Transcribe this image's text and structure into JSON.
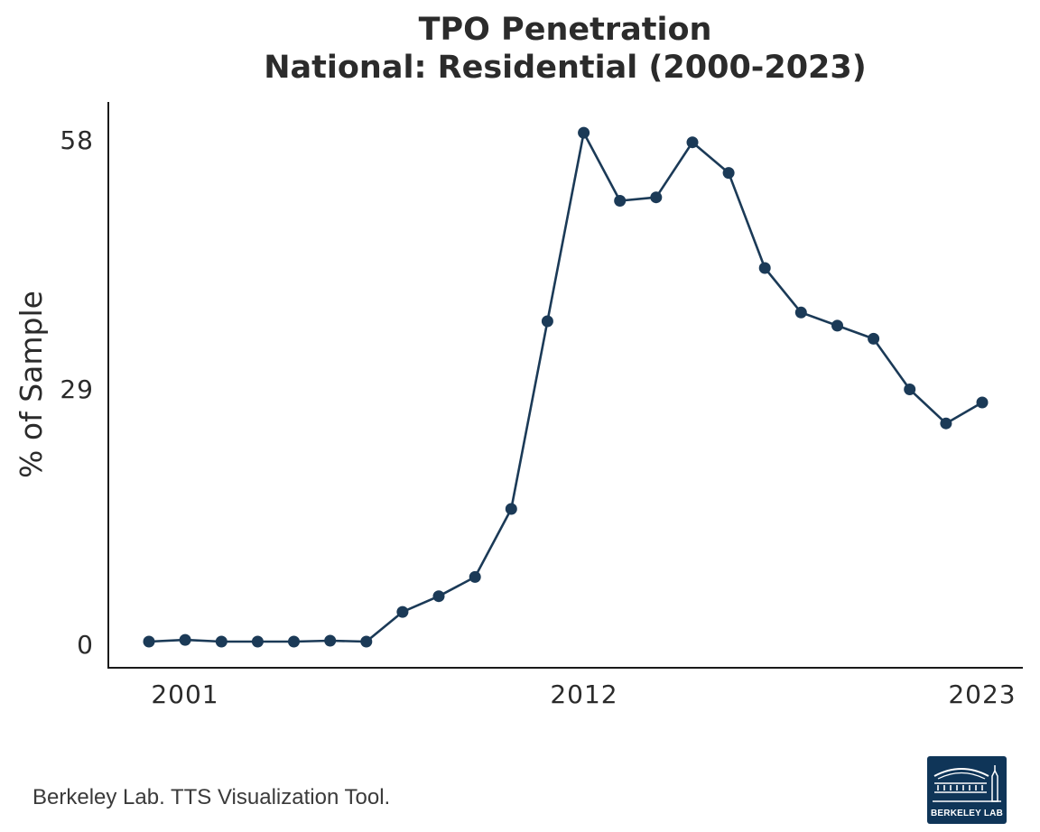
{
  "chart_data": {
    "type": "line",
    "title": "TPO Penetration",
    "subtitle": "National: Residential  (2000-2023)",
    "xlabel": "",
    "ylabel": "% of Sample",
    "x_ticks": [
      "2001",
      "2012",
      "2023"
    ],
    "y_ticks": [
      "0",
      "29",
      "58"
    ],
    "xlim": [
      2000,
      2023
    ],
    "ylim": [
      0,
      58
    ],
    "grid": false,
    "line_color": "#1b3a57",
    "x": [
      2000,
      2001,
      2002,
      2003,
      2004,
      2005,
      2006,
      2007,
      2008,
      2009,
      2010,
      2011,
      2012,
      2013,
      2014,
      2015,
      2016,
      2017,
      2018,
      2019,
      2020,
      2021,
      2022,
      2023
    ],
    "values": [
      0.0,
      0.2,
      0.0,
      0.0,
      0.0,
      0.1,
      0.0,
      3.4,
      5.2,
      7.4,
      15.2,
      36.7,
      58.3,
      50.5,
      50.9,
      57.2,
      53.7,
      42.8,
      37.7,
      36.2,
      34.7,
      28.9,
      25.0,
      27.4
    ]
  },
  "footer": {
    "caption": "Berkeley Lab. TTS Visualization Tool.",
    "logo_text": "BERKELEY LAB"
  }
}
